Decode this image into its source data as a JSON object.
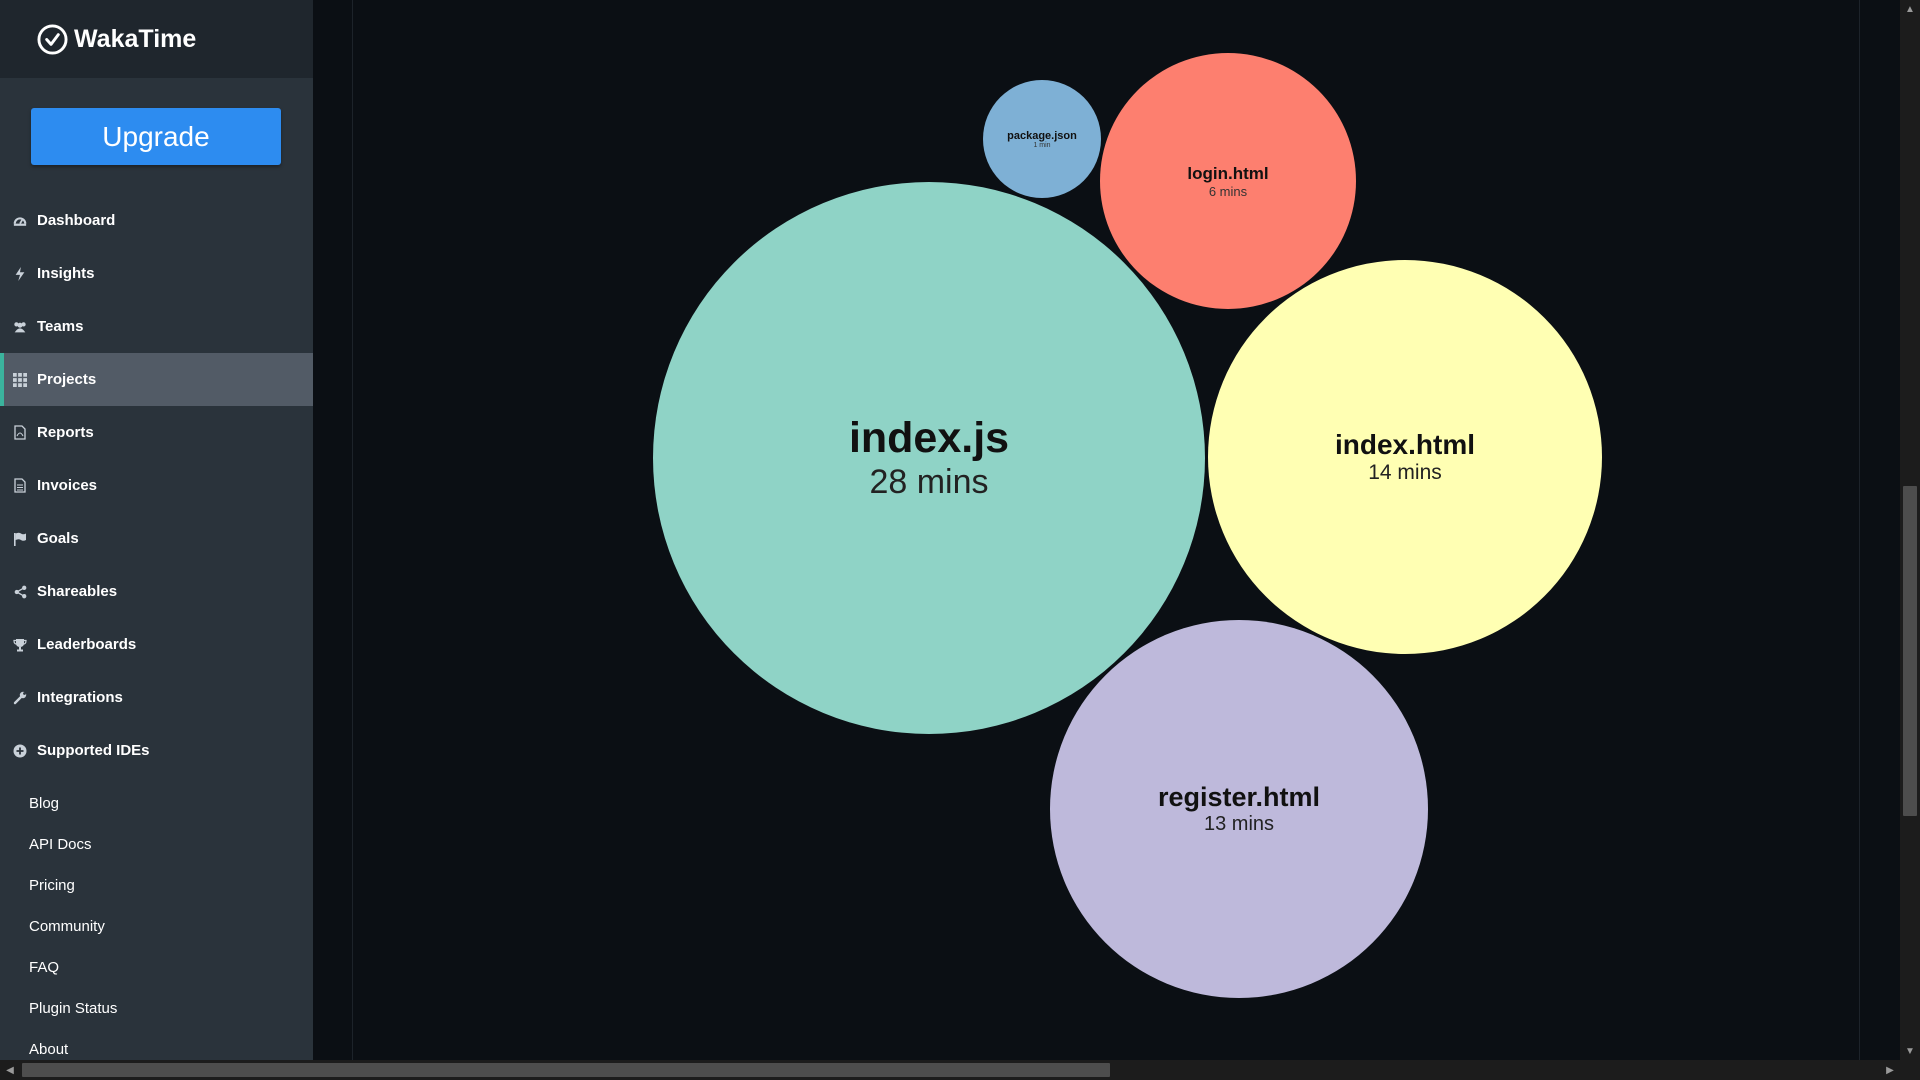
{
  "brand": {
    "name": "WakaTime"
  },
  "upgrade_label": "Upgrade",
  "nav": [
    {
      "label": "Dashboard",
      "icon": "dashboard-icon"
    },
    {
      "label": "Insights",
      "icon": "bolt-icon"
    },
    {
      "label": "Teams",
      "icon": "users-icon"
    },
    {
      "label": "Projects",
      "icon": "grid-icon",
      "active": true
    },
    {
      "label": "Reports",
      "icon": "file-pdf-icon"
    },
    {
      "label": "Invoices",
      "icon": "file-text-icon"
    },
    {
      "label": "Goals",
      "icon": "flag-icon"
    },
    {
      "label": "Shareables",
      "icon": "share-icon"
    },
    {
      "label": "Leaderboards",
      "icon": "trophy-icon"
    },
    {
      "label": "Integrations",
      "icon": "wrench-icon"
    },
    {
      "label": "Supported IDEs",
      "icon": "plus-circle-icon"
    }
  ],
  "links": [
    "Blog",
    "API Docs",
    "Pricing",
    "Community",
    "FAQ",
    "Plugin Status",
    "About"
  ],
  "files": [
    {
      "name": "package.json",
      "time": "1 min",
      "color": "#7eb0d5"
    },
    {
      "name": "login.html",
      "time": "6 mins",
      "color": "#fd7f6f"
    },
    {
      "name": "index.js",
      "time": "28 mins",
      "color": "#8fd3c6"
    },
    {
      "name": "index.html",
      "time": "14 mins",
      "color": "#ffffb3"
    },
    {
      "name": "register.html",
      "time": "13 mins",
      "color": "#beb9db"
    }
  ],
  "colors": {
    "sidebar": "#2a333b",
    "brand_bg": "#1f262d",
    "upgrade": "#2d8cf0",
    "active_accent": "#3bb39d",
    "active_bg": "#525b66"
  }
}
